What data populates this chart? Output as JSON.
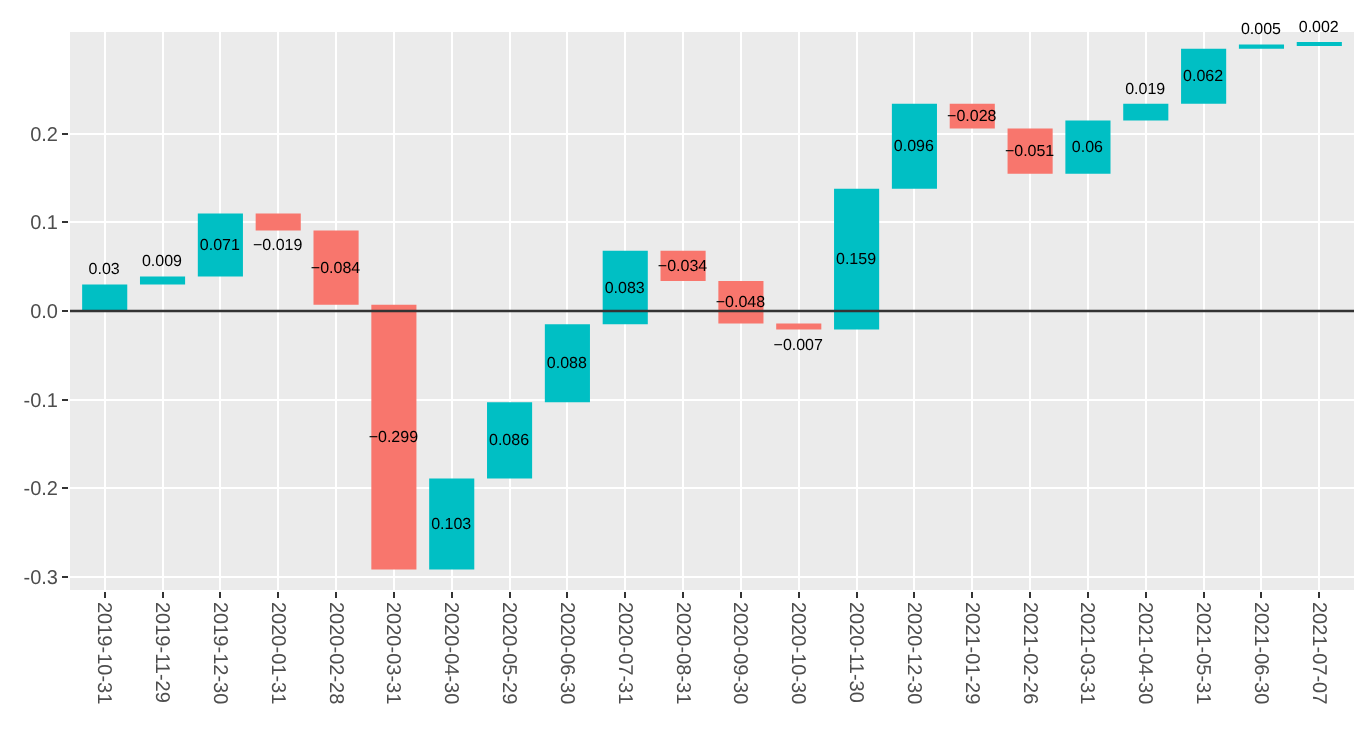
{
  "chart_data": {
    "type": "bar",
    "categories": [
      "2019-10-31",
      "2019-11-29",
      "2019-12-30",
      "2020-01-31",
      "2020-02-28",
      "2020-03-31",
      "2020-04-30",
      "2020-05-29",
      "2020-06-30",
      "2020-07-31",
      "2020-08-31",
      "2020-09-30",
      "2020-10-30",
      "2020-11-30",
      "2020-12-30",
      "2021-01-29",
      "2021-02-26",
      "2021-03-31",
      "2021-04-30",
      "2021-05-31",
      "2021-06-30",
      "2021-07-07"
    ],
    "values": [
      0.03,
      0.009,
      0.071,
      -0.019,
      -0.084,
      -0.299,
      0.103,
      0.086,
      0.088,
      0.083,
      -0.034,
      -0.048,
      -0.007,
      0.159,
      0.096,
      -0.028,
      -0.051,
      0.06,
      0.019,
      0.062,
      0.005,
      0.002
    ],
    "base": [
      0,
      0.03,
      0.039,
      0.11,
      0.091,
      0.007,
      -0.292,
      -0.189,
      -0.103,
      -0.015,
      0.068,
      0.034,
      -0.014,
      -0.021,
      0.138,
      0.234,
      0.206,
      0.155,
      0.215,
      0.234,
      0.296,
      0.301
    ],
    "colors": [
      "#00bfc4",
      "#00bfc4",
      "#00bfc4",
      "#f8766d",
      "#f8766d",
      "#f8766d",
      "#00bfc4",
      "#00bfc4",
      "#00bfc4",
      "#00bfc4",
      "#f8766d",
      "#f8766d",
      "#f8766d",
      "#00bfc4",
      "#00bfc4",
      "#f8766d",
      "#f8766d",
      "#00bfc4",
      "#00bfc4",
      "#00bfc4",
      "#00bfc4",
      "#00bfc4"
    ],
    "value_labels": [
      "0.03",
      "0.009",
      "0.071",
      "−0.019",
      "−0.084",
      "−0.299",
      "0.103",
      "0.086",
      "0.088",
      "0.083",
      "−0.034",
      "−0.048",
      "−0.007",
      "0.159",
      "0.096",
      "−0.028",
      "−0.051",
      "0.06",
      "0.019",
      "0.062",
      "0.005",
      "0.002"
    ],
    "ylim": [
      -0.315,
      0.315
    ],
    "yticks": [
      {
        "value": -0.3,
        "label": "-0.3"
      },
      {
        "value": -0.2,
        "label": "-0.2"
      },
      {
        "value": -0.1,
        "label": "-0.1"
      },
      {
        "value": 0,
        "label": "0.0"
      },
      {
        "value": 0.1,
        "label": "0.1"
      },
      {
        "value": 0.2,
        "label": "0.2"
      }
    ],
    "ref_lines": [
      {
        "axis": "y",
        "value": 0,
        "color": "#333333"
      }
    ],
    "grid": true
  }
}
